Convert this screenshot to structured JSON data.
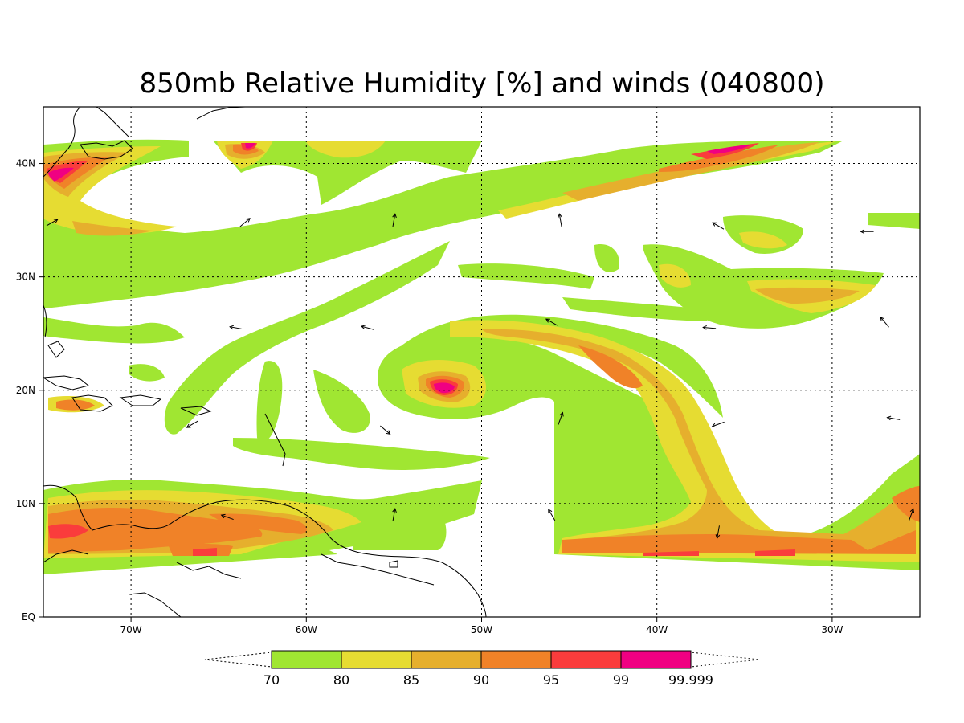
{
  "title": "850mb Relative Humidity [%] and winds (040800)",
  "colors": {
    "c70": "#a0e632",
    "c80": "#e6dc32",
    "c85": "#e6af2d",
    "c90": "#f08228",
    "c95": "#fa3c3c",
    "c99": "#f00082"
  },
  "map": {
    "lon_range": [
      -75,
      -25
    ],
    "lat_range": [
      0,
      45
    ],
    "lon_ticks": [
      {
        "value": -70,
        "label": "70W"
      },
      {
        "value": -60,
        "label": "60W"
      },
      {
        "value": -50,
        "label": "50W"
      },
      {
        "value": -40,
        "label": "40W"
      },
      {
        "value": -30,
        "label": "30W"
      }
    ],
    "lat_ticks": [
      {
        "value": 0,
        "label": "EQ"
      },
      {
        "value": 10,
        "label": "10N"
      },
      {
        "value": 20,
        "label": "20N"
      },
      {
        "value": 30,
        "label": "30N"
      },
      {
        "value": 40,
        "label": "40N"
      }
    ]
  },
  "colorbar": {
    "levels": [
      "70",
      "80",
      "85",
      "90",
      "95",
      "99",
      "99.999"
    ],
    "colors": [
      "#a0e632",
      "#e6dc32",
      "#e6af2d",
      "#f08228",
      "#fa3c3c",
      "#f00082"
    ]
  },
  "winds": [
    {
      "lon": -74.5,
      "lat": 34.8,
      "dir": 30
    },
    {
      "lon": -63.5,
      "lat": 34.8,
      "dir": 40
    },
    {
      "lon": -55.0,
      "lat": 35.0,
      "dir": 80
    },
    {
      "lon": -45.5,
      "lat": 35.0,
      "dir": 100
    },
    {
      "lon": -36.5,
      "lat": 34.5,
      "dir": 150
    },
    {
      "lon": -28.0,
      "lat": 34.0,
      "dir": 180
    },
    {
      "lon": -64.0,
      "lat": 25.5,
      "dir": 170
    },
    {
      "lon": -56.5,
      "lat": 25.5,
      "dir": 165
    },
    {
      "lon": -46.0,
      "lat": 26.0,
      "dir": 150
    },
    {
      "lon": -37.0,
      "lat": 25.5,
      "dir": 175
    },
    {
      "lon": -27.0,
      "lat": 26.0,
      "dir": 130
    },
    {
      "lon": -66.5,
      "lat": 17.0,
      "dir": 210
    },
    {
      "lon": -55.5,
      "lat": 16.5,
      "dir": 320
    },
    {
      "lon": -45.5,
      "lat": 17.5,
      "dir": 70
    },
    {
      "lon": -36.5,
      "lat": 17.0,
      "dir": 200
    },
    {
      "lon": -26.5,
      "lat": 17.5,
      "dir": 170
    },
    {
      "lon": -64.5,
      "lat": 8.8,
      "dir": 160
    },
    {
      "lon": -55.0,
      "lat": 9.0,
      "dir": 80
    },
    {
      "lon": -46.0,
      "lat": 9.0,
      "dir": 120
    },
    {
      "lon": -36.5,
      "lat": 7.5,
      "dir": 260
    },
    {
      "lon": -25.5,
      "lat": 9.0,
      "dir": 70
    }
  ]
}
